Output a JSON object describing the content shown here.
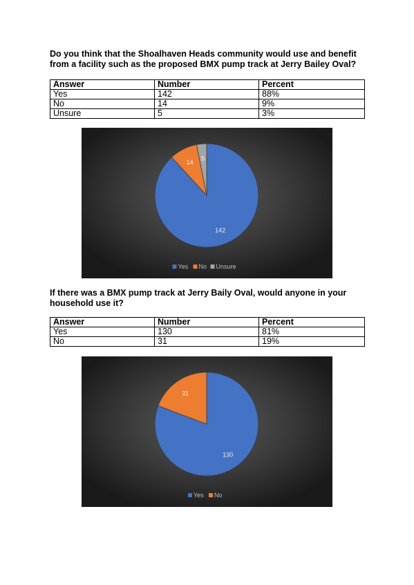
{
  "survey": {
    "q1": {
      "question": "Do you think that the Shoalhaven Heads community would use and benefit from a facility such as the proposed BMX pump track at Jerry Bailey Oval?",
      "table": {
        "headers": [
          "Answer",
          "Number",
          "Percent"
        ],
        "rows": [
          [
            "Yes",
            "142",
            "88%"
          ],
          [
            "No",
            "14",
            "9%"
          ],
          [
            "Unsure",
            "5",
            "3%"
          ]
        ]
      }
    },
    "q2": {
      "question": "If there was a BMX pump track at Jerry Baily Oval, would anyone in your household use it?",
      "table": {
        "headers": [
          "Answer",
          "Number",
          "Percent"
        ],
        "rows": [
          [
            "Yes",
            "130",
            "81%"
          ],
          [
            "No",
            "31",
            "19%"
          ]
        ]
      }
    }
  },
  "chart_data": [
    {
      "type": "pie",
      "categories": [
        "Yes",
        "No",
        "Unsure"
      ],
      "values": [
        142,
        14,
        5
      ],
      "colors": [
        "#4472C4",
        "#ED7D31",
        "#A5A5A5"
      ],
      "data_labels": [
        "142",
        "14",
        "5"
      ],
      "title": "",
      "legend": "bottom",
      "background": "dark radial"
    },
    {
      "type": "pie",
      "categories": [
        "Yes",
        "No"
      ],
      "values": [
        130,
        31
      ],
      "colors": [
        "#4472C4",
        "#ED7D31"
      ],
      "data_labels": [
        "130",
        "31"
      ],
      "title": "",
      "legend": "bottom",
      "background": "dark radial"
    }
  ]
}
